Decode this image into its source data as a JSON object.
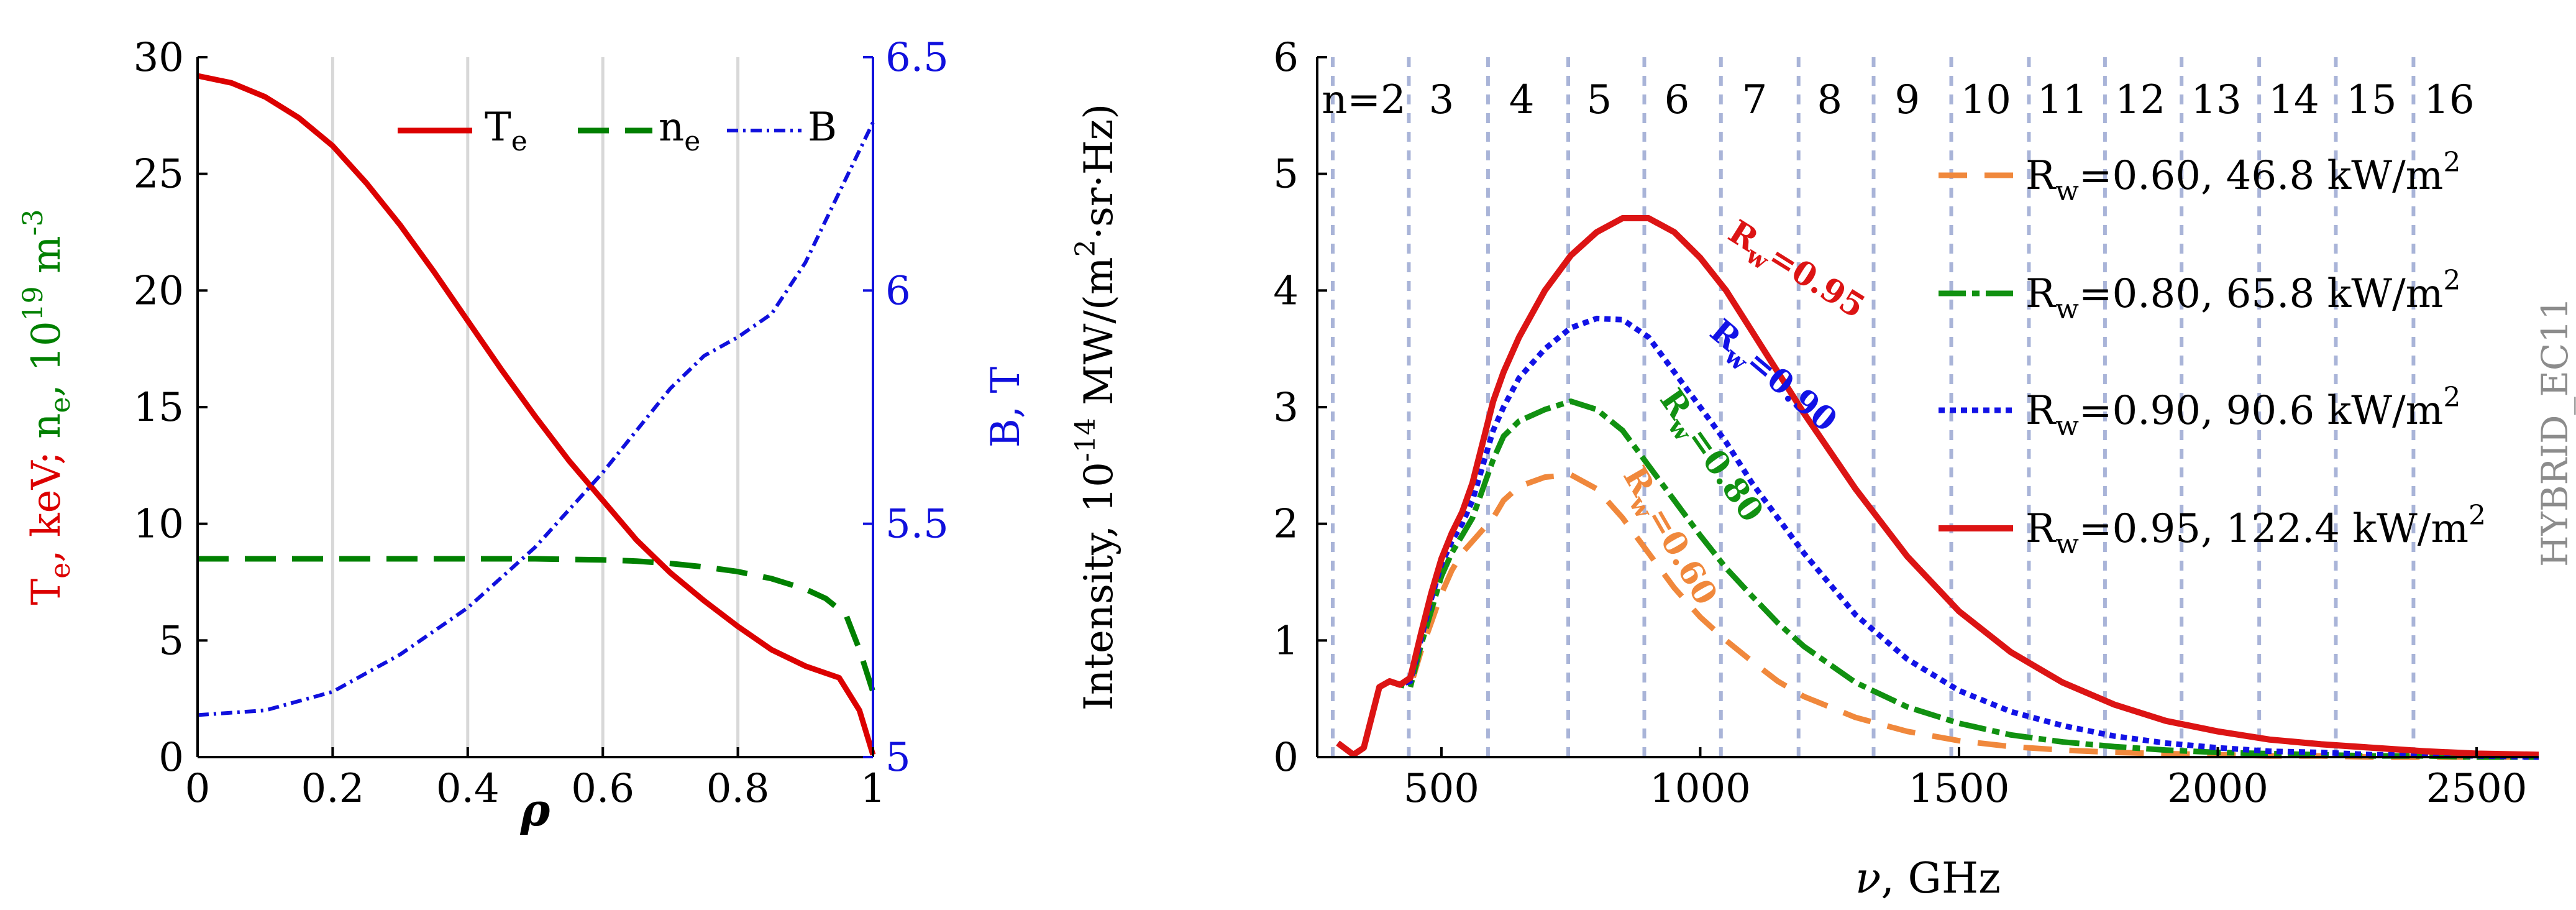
{
  "chart_data": [
    {
      "type": "line",
      "title": "",
      "xlabel": "ρ",
      "ylabel_left": {
        "parts": [
          [
            "T",
            "e",
            ", keV; "
          ],
          [
            "n",
            "e",
            ", 10"
          ],
          [
            "",
            "19",
            " m"
          ],
          [
            "",
            "-3",
            ""
          ]
        ]
      },
      "ylabel_right": "B, T",
      "xlim": [
        0,
        1
      ],
      "ylim_left": [
        0,
        30
      ],
      "ylim_right": [
        5,
        6.5
      ],
      "xticks": [
        0,
        0.2,
        0.4,
        0.6,
        0.8,
        1
      ],
      "xtick_labels": [
        "0",
        "0.2",
        "0.4",
        "0.6",
        "0.8",
        "1"
      ],
      "yticks_left": [
        0,
        5,
        10,
        15,
        20,
        25,
        30
      ],
      "ytick_left_labels": [
        "0",
        "5",
        "10",
        "15",
        "20",
        "25",
        "30"
      ],
      "yticks_right": [
        5,
        5.5,
        6,
        6.5
      ],
      "ytick_right_labels": [
        "5",
        "5.5",
        "6",
        "6.5"
      ],
      "grid_x": [
        0.2,
        0.4,
        0.6,
        0.8
      ],
      "legend_position": "top-right",
      "legend": [
        {
          "main": "T",
          "sub": "e",
          "series": "Te"
        },
        {
          "main": "n",
          "sub": "e",
          "series": "ne"
        },
        {
          "main": "B",
          "sub": "",
          "series": "B"
        }
      ],
      "series": [
        {
          "name": "Te",
          "axis": "left",
          "color": "#dc0000",
          "dash": "",
          "width": 9,
          "x": [
            0,
            0.05,
            0.1,
            0.15,
            0.2,
            0.25,
            0.3,
            0.35,
            0.4,
            0.45,
            0.5,
            0.55,
            0.6,
            0.65,
            0.7,
            0.75,
            0.8,
            0.85,
            0.9,
            0.95,
            0.98,
            1.0
          ],
          "y": [
            29.2,
            28.9,
            28.3,
            27.4,
            26.2,
            24.6,
            22.8,
            20.8,
            18.7,
            16.6,
            14.6,
            12.7,
            11.0,
            9.3,
            7.9,
            6.7,
            5.6,
            4.6,
            3.9,
            3.4,
            2.0,
            0.1
          ]
        },
        {
          "name": "ne",
          "axis": "left",
          "color": "#008000",
          "dash": "50 26",
          "width": 9,
          "x": [
            0,
            0.1,
            0.2,
            0.3,
            0.4,
            0.5,
            0.6,
            0.65,
            0.7,
            0.75,
            0.8,
            0.85,
            0.9,
            0.93,
            0.96,
            0.98,
            1.0
          ],
          "y": [
            8.5,
            8.5,
            8.5,
            8.5,
            8.5,
            8.5,
            8.45,
            8.4,
            8.3,
            8.15,
            7.95,
            7.65,
            7.2,
            6.8,
            6.1,
            4.6,
            2.8
          ]
        },
        {
          "name": "B",
          "axis": "right",
          "color": "#1010dd",
          "dash": "18 8 4 8",
          "width": 6,
          "x": [
            0,
            0.1,
            0.2,
            0.3,
            0.4,
            0.5,
            0.55,
            0.6,
            0.65,
            0.7,
            0.75,
            0.8,
            0.85,
            0.9,
            0.95,
            1.0
          ],
          "y": [
            5.09,
            5.1,
            5.14,
            5.22,
            5.32,
            5.45,
            5.53,
            5.61,
            5.7,
            5.79,
            5.86,
            5.9,
            5.95,
            6.06,
            6.21,
            6.36
          ]
        }
      ]
    },
    {
      "type": "line",
      "title": "",
      "xlabel": "ν, GHz",
      "ylabel": {
        "parts": [
          [
            "Intensity, 10",
            "-14",
            " MW/(m"
          ],
          [
            "",
            "2",
            "·sr·Hz)"
          ]
        ]
      },
      "xlim": [
        260,
        2620
      ],
      "ylim": [
        0,
        6
      ],
      "xticks": [
        500,
        1000,
        1500,
        2000,
        2500
      ],
      "xtick_labels": [
        "500",
        "1000",
        "1500",
        "2000",
        "2500"
      ],
      "yticks": [
        0,
        1,
        2,
        3,
        4,
        5,
        6
      ],
      "ytick_labels": [
        "0",
        "1",
        "2",
        "3",
        "4",
        "5",
        "6"
      ],
      "harmonic_lines": [
        290,
        437,
        590,
        745,
        892,
        1040,
        1190,
        1335,
        1485,
        1635,
        1782,
        1930,
        2080,
        2228,
        2378
      ],
      "harmonic_labels": [
        {
          "text": "n=2",
          "x": 350
        },
        {
          "text": "3",
          "x": 500
        },
        {
          "text": "4",
          "x": 655
        },
        {
          "text": "5",
          "x": 805
        },
        {
          "text": "6",
          "x": 955
        },
        {
          "text": "7",
          "x": 1105
        },
        {
          "text": "8",
          "x": 1250
        },
        {
          "text": "9",
          "x": 1400
        },
        {
          "text": "10",
          "x": 1552
        },
        {
          "text": "11",
          "x": 1700
        },
        {
          "text": "12",
          "x": 1850
        },
        {
          "text": "13",
          "x": 1997
        },
        {
          "text": "14",
          "x": 2147
        },
        {
          "text": "15",
          "x": 2297
        },
        {
          "text": "16",
          "x": 2447
        }
      ],
      "legend_position": "top-right",
      "legend": [
        {
          "prefix": "R",
          "sub": "w",
          "mid": "=0.60, 46.8 kW/m",
          "sup": "2",
          "series": "Rw=0.60"
        },
        {
          "prefix": "R",
          "sub": "w",
          "mid": "=0.80, 65.8 kW/m",
          "sup": "2",
          "series": "Rw=0.80"
        },
        {
          "prefix": "R",
          "sub": "w",
          "mid": "=0.90, 90.6 kW/m",
          "sup": "2",
          "series": "Rw=0.90"
        },
        {
          "prefix": "R",
          "sub": "w",
          "mid": "=0.95, 122.4 kW/m",
          "sup": "2",
          "series": "Rw=0.95"
        }
      ],
      "annotations": [
        {
          "main": "R",
          "sub": "w",
          "rest": "=0.95",
          "series": "Rw=0.95",
          "x": 1050,
          "y": 4.45,
          "angle": 32
        },
        {
          "main": "R",
          "sub": "w",
          "rest": "=0.90",
          "series": "Rw=0.90",
          "x": 1015,
          "y": 3.62,
          "angle": 40
        },
        {
          "main": "R",
          "sub": "w",
          "rest": "=0.80",
          "series": "Rw=0.80",
          "x": 920,
          "y": 3.07,
          "angle": 55
        },
        {
          "main": "R",
          "sub": "w",
          "rest": "=0.60",
          "series": "Rw=0.60",
          "x": 850,
          "y": 2.42,
          "angle": 60
        }
      ],
      "watermark": "HYBRID_EC11",
      "series": [
        {
          "name": "Rw=0.60",
          "color": "#f0883c",
          "dash": "46 28",
          "width": 9,
          "x": [
            300,
            330,
            350,
            380,
            400,
            420,
            440,
            460,
            480,
            500,
            520,
            540,
            560,
            580,
            600,
            620,
            650,
            700,
            750,
            800,
            850,
            900,
            950,
            1000,
            1050,
            1100,
            1150,
            1200,
            1300,
            1400,
            1500,
            1600,
            1700,
            1800,
            1900,
            2000,
            2100,
            2200,
            2300,
            2400,
            2500,
            2620
          ],
          "y": [
            0.12,
            0.02,
            0.08,
            0.6,
            0.65,
            0.62,
            0.6,
            0.9,
            1.15,
            1.4,
            1.6,
            1.75,
            1.85,
            1.95,
            2.05,
            2.2,
            2.32,
            2.4,
            2.42,
            2.3,
            2.05,
            1.75,
            1.45,
            1.2,
            1.0,
            0.82,
            0.65,
            0.52,
            0.34,
            0.22,
            0.14,
            0.09,
            0.06,
            0.04,
            0.03,
            0.02,
            0.01,
            0.01,
            0.0,
            0.0,
            0.0,
            0.0
          ]
        },
        {
          "name": "Rw=0.80",
          "color": "#119111",
          "dash": "44 10 12 10",
          "width": 9,
          "x": [
            300,
            330,
            350,
            380,
            400,
            420,
            440,
            460,
            480,
            500,
            520,
            540,
            560,
            580,
            600,
            620,
            650,
            700,
            750,
            800,
            850,
            900,
            950,
            1000,
            1050,
            1100,
            1150,
            1200,
            1300,
            1400,
            1500,
            1600,
            1700,
            1800,
            1900,
            2000,
            2100,
            2200,
            2300,
            2400,
            2500,
            2620
          ],
          "y": [
            0.12,
            0.02,
            0.08,
            0.6,
            0.65,
            0.62,
            0.6,
            0.95,
            1.25,
            1.55,
            1.75,
            1.9,
            2.05,
            2.3,
            2.55,
            2.75,
            2.88,
            2.98,
            3.05,
            2.98,
            2.8,
            2.5,
            2.2,
            1.9,
            1.62,
            1.38,
            1.15,
            0.95,
            0.64,
            0.43,
            0.29,
            0.19,
            0.13,
            0.09,
            0.06,
            0.04,
            0.03,
            0.02,
            0.01,
            0.01,
            0.0,
            0.0
          ]
        },
        {
          "name": "Rw=0.90",
          "color": "#1212e6",
          "dash": "10 8",
          "width": 9,
          "x": [
            300,
            330,
            350,
            380,
            400,
            420,
            440,
            460,
            480,
            500,
            520,
            540,
            560,
            580,
            600,
            620,
            650,
            700,
            750,
            800,
            850,
            900,
            950,
            1000,
            1050,
            1100,
            1150,
            1200,
            1300,
            1400,
            1500,
            1600,
            1700,
            1800,
            1900,
            2000,
            2100,
            2200,
            2300,
            2400,
            2500,
            2620
          ],
          "y": [
            0.12,
            0.02,
            0.08,
            0.6,
            0.65,
            0.62,
            0.65,
            1.0,
            1.35,
            1.65,
            1.85,
            2.0,
            2.2,
            2.5,
            2.8,
            3.0,
            3.25,
            3.5,
            3.68,
            3.76,
            3.75,
            3.6,
            3.3,
            3.0,
            2.7,
            2.35,
            2.05,
            1.75,
            1.22,
            0.84,
            0.57,
            0.39,
            0.27,
            0.18,
            0.12,
            0.08,
            0.05,
            0.04,
            0.02,
            0.02,
            0.01,
            0.0
          ]
        },
        {
          "name": "Rw=0.95",
          "color": "#dc1414",
          "dash": "",
          "width": 10,
          "x": [
            300,
            330,
            350,
            380,
            400,
            420,
            440,
            460,
            480,
            500,
            520,
            540,
            560,
            580,
            600,
            620,
            650,
            700,
            750,
            800,
            850,
            900,
            950,
            1000,
            1050,
            1100,
            1150,
            1200,
            1300,
            1400,
            1500,
            1600,
            1700,
            1800,
            1900,
            2000,
            2100,
            2200,
            2300,
            2400,
            2500,
            2620
          ],
          "y": [
            0.12,
            0.02,
            0.08,
            0.6,
            0.65,
            0.62,
            0.68,
            1.05,
            1.4,
            1.7,
            1.92,
            2.1,
            2.35,
            2.7,
            3.05,
            3.3,
            3.6,
            4.0,
            4.3,
            4.5,
            4.62,
            4.62,
            4.5,
            4.28,
            4.0,
            3.65,
            3.3,
            2.95,
            2.3,
            1.72,
            1.25,
            0.9,
            0.64,
            0.45,
            0.31,
            0.22,
            0.15,
            0.11,
            0.08,
            0.05,
            0.03,
            0.02
          ]
        }
      ]
    }
  ]
}
